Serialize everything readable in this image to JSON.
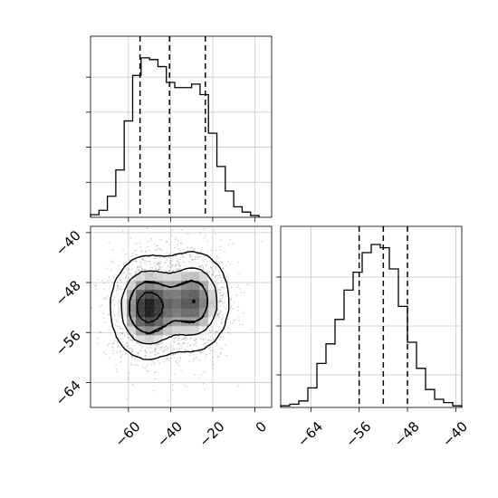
{
  "chart_data": [
    {
      "type": "histogram",
      "panel": "x-marginal",
      "x_range": [
        -78,
        8
      ],
      "bin_edges": [
        -78,
        -74,
        -70,
        -66,
        -62,
        -58,
        -54,
        -50,
        -46,
        -42,
        -38,
        -34,
        -30,
        -26,
        -22,
        -18,
        -14,
        -10,
        -6,
        -2,
        2
      ],
      "counts": [
        0.015,
        0.04,
        0.12,
        0.27,
        0.55,
        0.81,
        0.91,
        0.9,
        0.86,
        0.77,
        0.74,
        0.74,
        0.76,
        0.7,
        0.48,
        0.29,
        0.15,
        0.06,
        0.03,
        0.01
      ],
      "quantile_lines": [
        -54.5,
        -40.5,
        -23.5
      ],
      "x_ticks": [
        -60,
        -40,
        -20,
        0
      ],
      "grid": true,
      "y_tick_labels_shown": false
    },
    {
      "type": "scatter",
      "panel": "joint",
      "xlim": [
        -78,
        8
      ],
      "ylim": [
        -68,
        -39
      ],
      "x_ticks": [
        -60,
        -40,
        -20,
        0
      ],
      "x_tick_labels": [
        "−60",
        "−40",
        "−20",
        "0"
      ],
      "y_ticks": [
        -40,
        -48,
        -56,
        -64
      ],
      "y_tick_labels": [
        "−40",
        "−48",
        "−56",
        "−64"
      ],
      "modes": [
        {
          "x": -51,
          "y": -52,
          "sx": 8.5,
          "sy": 4.0,
          "weight": 0.55
        },
        {
          "x": -29,
          "y": -51,
          "sx": 8.5,
          "sy": 4.0,
          "weight": 0.45
        }
      ],
      "density_levels": 4,
      "grid": true
    },
    {
      "type": "histogram",
      "panel": "y-marginal",
      "x_range": [
        -69,
        -39
      ],
      "bin_edges": [
        -69,
        -67.5,
        -66,
        -64.5,
        -63,
        -61.5,
        -60,
        -58.5,
        -57,
        -55.5,
        -54,
        -52.5,
        -51,
        -49.5,
        -48,
        -46.5,
        -45,
        -43.5,
        -42,
        -40.5,
        -39
      ],
      "counts": [
        0.01,
        0.02,
        0.04,
        0.12,
        0.27,
        0.39,
        0.54,
        0.72,
        0.83,
        0.95,
        1.0,
        0.98,
        0.85,
        0.62,
        0.4,
        0.24,
        0.11,
        0.05,
        0.03,
        0.01
      ],
      "quantile_lines": [
        -56,
        -52,
        -48
      ],
      "x_ticks": [
        -64,
        -56,
        -48,
        -40
      ],
      "x_tick_labels": [
        "−64",
        "−56",
        "−48",
        "−40"
      ],
      "grid": true,
      "y_tick_labels_shown": false
    }
  ]
}
